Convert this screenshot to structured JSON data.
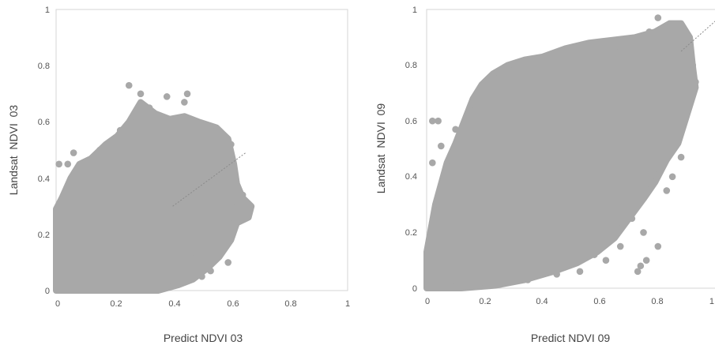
{
  "chart_data": [
    {
      "type": "scatter",
      "title": "",
      "xlabel": "Predict NDVI 03",
      "ylabel": "Landsat  NDVI  03",
      "xlim": [
        0,
        1
      ],
      "ylim": [
        0,
        1
      ],
      "x_ticks": [
        "0",
        "0.2",
        "0.4",
        "0.6",
        "0.8",
        "1"
      ],
      "y_ticks": [
        "0",
        "0.2",
        "0.4",
        "0.6",
        "0.8",
        "1"
      ],
      "grid": false,
      "legend": "none",
      "point_color": "#a8a8a8",
      "trendline": {
        "style": "dotted",
        "x": [
          0.4,
          0.65
        ],
        "y": [
          0.3,
          0.49
        ]
      },
      "cloud_outline": [
        [
          0,
          0
        ],
        [
          0,
          0.29
        ],
        [
          0.02,
          0.33
        ],
        [
          0.05,
          0.4
        ],
        [
          0.08,
          0.45
        ],
        [
          0.12,
          0.47
        ],
        [
          0.17,
          0.52
        ],
        [
          0.21,
          0.55
        ],
        [
          0.25,
          0.6
        ],
        [
          0.29,
          0.67
        ],
        [
          0.34,
          0.63
        ],
        [
          0.39,
          0.61
        ],
        [
          0.44,
          0.62
        ],
        [
          0.49,
          0.6
        ],
        [
          0.55,
          0.58
        ],
        [
          0.59,
          0.54
        ],
        [
          0.61,
          0.45
        ],
        [
          0.62,
          0.38
        ],
        [
          0.64,
          0.33
        ],
        [
          0.67,
          0.3
        ],
        [
          0.66,
          0.26
        ],
        [
          0.62,
          0.24
        ],
        [
          0.6,
          0.18
        ],
        [
          0.56,
          0.12
        ],
        [
          0.52,
          0.08
        ],
        [
          0.47,
          0.04
        ],
        [
          0.42,
          0.02
        ],
        [
          0.35,
          0
        ],
        [
          0,
          0
        ]
      ],
      "points": [
        [
          0.25,
          0.73
        ],
        [
          0.29,
          0.7
        ],
        [
          0.38,
          0.69
        ],
        [
          0.45,
          0.7
        ],
        [
          0.44,
          0.67
        ],
        [
          0.32,
          0.65
        ],
        [
          0.06,
          0.49
        ],
        [
          0.01,
          0.45
        ],
        [
          0.04,
          0.45
        ],
        [
          0.15,
          0.5
        ],
        [
          0.19,
          0.53
        ],
        [
          0.55,
          0.57
        ],
        [
          0.57,
          0.55
        ],
        [
          0.6,
          0.52
        ],
        [
          0.64,
          0.34
        ],
        [
          0.65,
          0.31
        ],
        [
          0.66,
          0.28
        ],
        [
          0.62,
          0.3
        ],
        [
          0.59,
          0.1
        ],
        [
          0.53,
          0.07
        ],
        [
          0.5,
          0.05
        ],
        [
          0.42,
          0.03
        ],
        [
          0.4,
          0.06
        ],
        [
          0.61,
          0.24
        ],
        [
          0.48,
          0.12
        ],
        [
          0.34,
          0.5
        ],
        [
          0.4,
          0.55
        ],
        [
          0.27,
          0.62
        ],
        [
          0.22,
          0.57
        ],
        [
          0.1,
          0.42
        ]
      ]
    },
    {
      "type": "scatter",
      "title": "",
      "xlabel": "Predict NDVI 09",
      "ylabel": "Landsat  NDVI  09",
      "xlim": [
        0,
        1
      ],
      "ylim": [
        0,
        1
      ],
      "x_ticks": [
        "0",
        "0.2",
        "0.4",
        "0.6",
        "0.8",
        "1"
      ],
      "y_ticks": [
        "0",
        "0.2",
        "0.4",
        "0.6",
        "0.8",
        "1"
      ],
      "grid": false,
      "legend": "none",
      "point_color": "#a8a8a8",
      "trendline": {
        "style": "dotted",
        "x": [
          0.88,
          1.0
        ],
        "y": [
          0.85,
          0.96
        ]
      },
      "cloud_outline": [
        [
          0,
          0
        ],
        [
          0,
          0.13
        ],
        [
          0.03,
          0.3
        ],
        [
          0.07,
          0.45
        ],
        [
          0.1,
          0.52
        ],
        [
          0.13,
          0.6
        ],
        [
          0.16,
          0.68
        ],
        [
          0.19,
          0.73
        ],
        [
          0.23,
          0.77
        ],
        [
          0.28,
          0.8
        ],
        [
          0.34,
          0.82
        ],
        [
          0.4,
          0.83
        ],
        [
          0.48,
          0.86
        ],
        [
          0.56,
          0.88
        ],
        [
          0.64,
          0.89
        ],
        [
          0.72,
          0.9
        ],
        [
          0.79,
          0.92
        ],
        [
          0.84,
          0.95
        ],
        [
          0.88,
          0.95
        ],
        [
          0.91,
          0.9
        ],
        [
          0.92,
          0.8
        ],
        [
          0.93,
          0.72
        ],
        [
          0.9,
          0.62
        ],
        [
          0.87,
          0.52
        ],
        [
          0.83,
          0.46
        ],
        [
          0.79,
          0.38
        ],
        [
          0.75,
          0.32
        ],
        [
          0.7,
          0.25
        ],
        [
          0.65,
          0.18
        ],
        [
          0.59,
          0.13
        ],
        [
          0.52,
          0.09
        ],
        [
          0.44,
          0.06
        ],
        [
          0.34,
          0.03
        ],
        [
          0.24,
          0.01
        ],
        [
          0.12,
          0
        ],
        [
          0,
          0
        ]
      ],
      "points": [
        [
          0.8,
          0.97
        ],
        [
          0.84,
          0.94
        ],
        [
          0.88,
          0.93
        ],
        [
          0.77,
          0.92
        ],
        [
          0.9,
          0.88
        ],
        [
          0.92,
          0.8
        ],
        [
          0.93,
          0.74
        ],
        [
          0.91,
          0.71
        ],
        [
          0.02,
          0.6
        ],
        [
          0.04,
          0.6
        ],
        [
          0.02,
          0.45
        ],
        [
          0.05,
          0.51
        ],
        [
          0.1,
          0.57
        ],
        [
          0.15,
          0.64
        ],
        [
          0.2,
          0.71
        ],
        [
          0.25,
          0.74
        ],
        [
          0.3,
          0.78
        ],
        [
          0.36,
          0.8
        ],
        [
          0.45,
          0.84
        ],
        [
          0.04,
          0.28
        ],
        [
          0.02,
          0.2
        ],
        [
          0.01,
          0.1
        ],
        [
          0.71,
          0.25
        ],
        [
          0.75,
          0.2
        ],
        [
          0.8,
          0.15
        ],
        [
          0.76,
          0.1
        ],
        [
          0.74,
          0.08
        ],
        [
          0.73,
          0.06
        ],
        [
          0.67,
          0.15
        ],
        [
          0.62,
          0.1
        ],
        [
          0.58,
          0.12
        ],
        [
          0.85,
          0.4
        ],
        [
          0.88,
          0.47
        ],
        [
          0.83,
          0.35
        ],
        [
          0.53,
          0.06
        ],
        [
          0.45,
          0.05
        ],
        [
          0.35,
          0.03
        ],
        [
          0.2,
          0.02
        ],
        [
          0.1,
          0.01
        ],
        [
          0.65,
          0.85
        ],
        [
          0.7,
          0.88
        ]
      ]
    }
  ]
}
